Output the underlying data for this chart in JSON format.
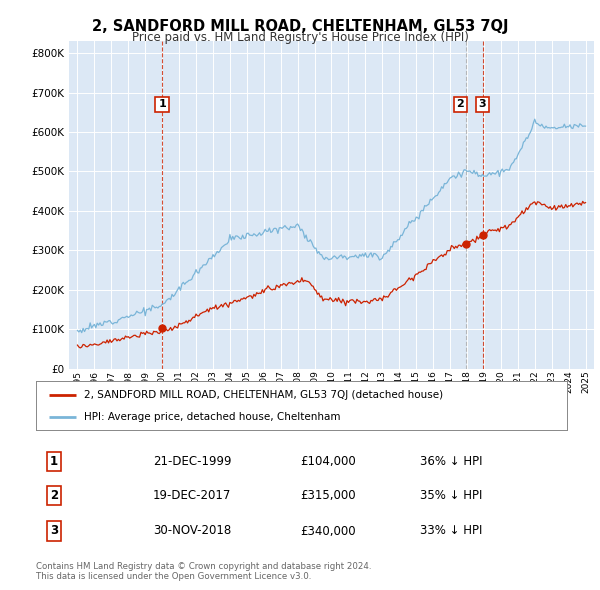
{
  "title": "2, SANDFORD MILL ROAD, CHELTENHAM, GL53 7QJ",
  "subtitle": "Price paid vs. HM Land Registry's House Price Index (HPI)",
  "legend_line1": "2, SANDFORD MILL ROAD, CHELTENHAM, GL53 7QJ (detached house)",
  "legend_line2": "HPI: Average price, detached house, Cheltenham",
  "transactions": [
    {
      "num": 1,
      "date": "21-DEC-1999",
      "price": 104000,
      "pct": "36%",
      "label": "1",
      "year": 2000.0
    },
    {
      "num": 2,
      "date": "19-DEC-2017",
      "price": 315000,
      "pct": "35%",
      "label": "2",
      "year": 2017.97
    },
    {
      "num": 3,
      "date": "30-NOV-2018",
      "price": 340000,
      "pct": "33%",
      "label": "3",
      "year": 2018.92
    }
  ],
  "footnote1": "Contains HM Land Registry data © Crown copyright and database right 2024.",
  "footnote2": "This data is licensed under the Open Government Licence v3.0.",
  "hpi_color": "#7ab5d8",
  "price_color": "#cc2200",
  "background_color": "#dce8f5",
  "ylim": [
    0,
    830000
  ],
  "yticks": [
    0,
    100000,
    200000,
    300000,
    400000,
    500000,
    600000,
    700000,
    800000
  ],
  "xmin": 1994.5,
  "xmax": 2025.5
}
